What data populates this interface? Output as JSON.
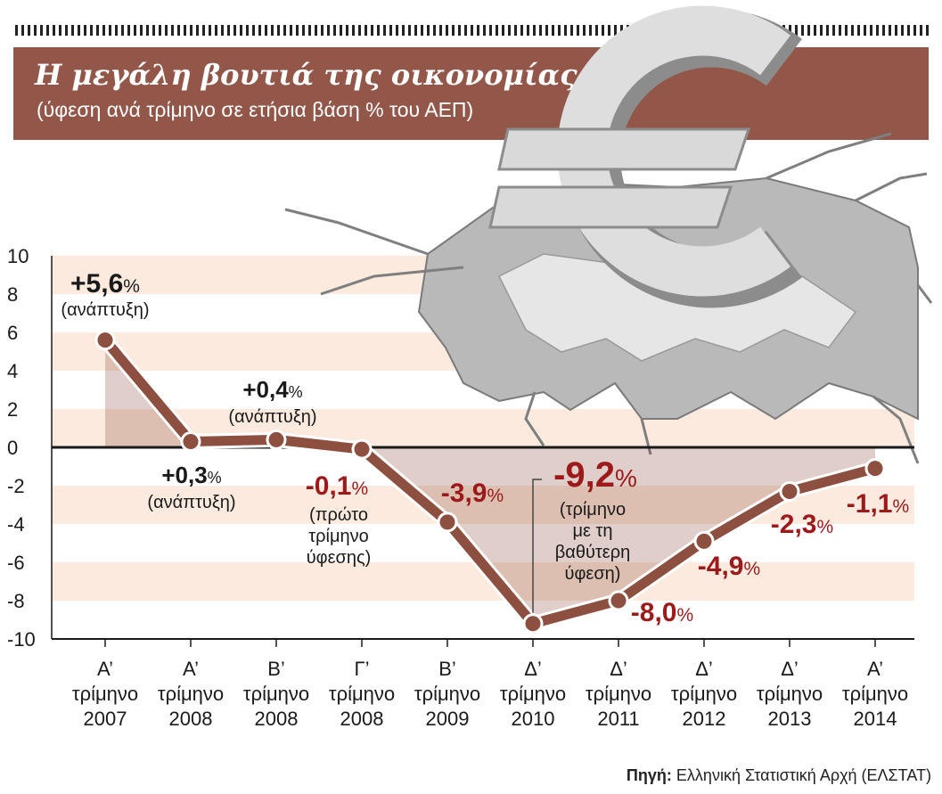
{
  "header": {
    "title": "Η μεγάλη βουτιά της οικονομίας",
    "subtitle": "(ύφεση ανά τρίμηνο σε ετήσια βάση % του ΑΕΠ)"
  },
  "source": {
    "label": "Πηγή:",
    "text": "Ελληνική Στατιστική Αρχή (ΕΛΣΤΑΤ)"
  },
  "colors": {
    "line": "#8d4f3f",
    "positive_label": "#1a1a1a",
    "negative_label": "#9c1a1a",
    "band": "#fbeadd",
    "banner": "#93574a"
  },
  "chart_data": {
    "type": "line",
    "title": "Η μεγάλη βουτιά της οικονομίας",
    "subtitle": "(ύφεση ανά τρίμηνο σε ετήσια βάση % του ΑΕΠ)",
    "ylim": [
      -10,
      10
    ],
    "yticks": [
      "10",
      "8",
      "6",
      "4",
      "2",
      "0",
      "-2",
      "-4",
      "-6",
      "-8",
      "-10"
    ],
    "categories": [
      [
        "Α’",
        "τρίμηνο",
        "2007"
      ],
      [
        "Α’",
        "τρίμηνο",
        "2008"
      ],
      [
        "Β’",
        "τρίμηνο",
        "2008"
      ],
      [
        "Γ’",
        "τρίμηνο",
        "2008"
      ],
      [
        "Β’",
        "τρίμηνο",
        "2009"
      ],
      [
        "Δ’",
        "τρίμηνο",
        "2010"
      ],
      [
        "Δ’",
        "τρίμηνο",
        "2011"
      ],
      [
        "Δ’",
        "τρίμηνο",
        "2012"
      ],
      [
        "Δ’",
        "τρίμηνο",
        "2013"
      ],
      [
        "Α’",
        "τρίμηνο",
        "2014"
      ]
    ],
    "values": [
      5.6,
      0.3,
      0.4,
      -0.1,
      -3.9,
      -9.2,
      -8.0,
      -4.9,
      -2.3,
      -1.1
    ],
    "labels": [
      {
        "main": "+5,6",
        "pct": "%",
        "notes": [
          "(ανάπτυξη)"
        ],
        "negative": false
      },
      {
        "main": "+0,3",
        "pct": "%",
        "notes": [
          "(ανάπτυξη)"
        ],
        "negative": false
      },
      {
        "main": "+0,4",
        "pct": "%",
        "notes": [
          "(ανάπτυξη)"
        ],
        "negative": false
      },
      {
        "main": "-0,1",
        "pct": "%",
        "notes": [
          "(πρώτο",
          "τρίμηνο",
          "ύφεσης)"
        ],
        "negative": true
      },
      {
        "main": "-3,9",
        "pct": "%",
        "notes": [],
        "negative": true
      },
      {
        "main": "-9,2",
        "pct": "%",
        "notes": [
          "(τρίμηνο",
          "με τη",
          "βαθύτερη",
          "ύφεση)"
        ],
        "negative": true
      },
      {
        "main": "-8,0",
        "pct": "%",
        "notes": [],
        "negative": true
      },
      {
        "main": "-4,9",
        "pct": "%",
        "notes": [],
        "negative": true
      },
      {
        "main": "-2,3",
        "pct": "%",
        "notes": [],
        "negative": true
      },
      {
        "main": "-1,1",
        "pct": "%",
        "notes": [],
        "negative": true
      }
    ]
  }
}
